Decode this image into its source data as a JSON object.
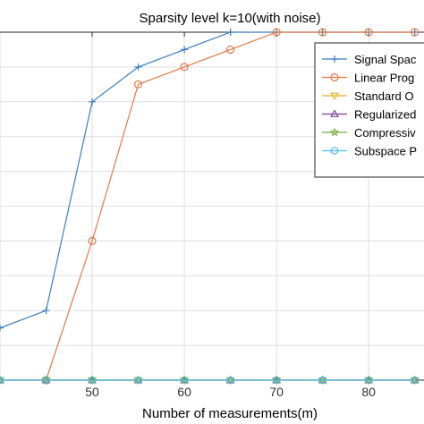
{
  "chart_data": {
    "type": "line",
    "title": "Sparsity level k=10(with noise)",
    "xlabel": "Number of measurements(m)",
    "ylabel": "",
    "xlim": [
      40,
      86
    ],
    "ylim": [
      0,
      1
    ],
    "grid": true,
    "x_ticks": [
      "50",
      "60",
      "70",
      "80"
    ],
    "legend_position": "top-right",
    "series": [
      {
        "name": "Signal Spac",
        "color": "#3b7ebf",
        "marker": "plus",
        "x": [
          40,
          45,
          50,
          55,
          60,
          65,
          70,
          75,
          80,
          85
        ],
        "y": [
          0.15,
          0.2,
          0.8,
          0.9,
          0.95,
          1.0,
          1.0,
          1.0,
          1.0,
          1.0
        ]
      },
      {
        "name": "Linear Prog",
        "color": "#e07a48",
        "marker": "circle",
        "x": [
          45,
          50,
          55,
          60,
          65,
          70,
          75,
          80,
          85
        ],
        "y": [
          0.0,
          0.4,
          0.85,
          0.9,
          0.95,
          1.0,
          1.0,
          1.0,
          1.0
        ]
      },
      {
        "name": "Standard O",
        "color": "#e3b41f",
        "marker": "triangle-down",
        "x": [
          40,
          45,
          50,
          55,
          60,
          65,
          70,
          75,
          80,
          85
        ],
        "y": [
          0,
          0,
          0,
          0,
          0,
          0,
          0,
          0,
          0,
          0
        ]
      },
      {
        "name": "Regularized",
        "color": "#7e3f97",
        "marker": "triangle-up",
        "x": [
          40,
          45,
          50,
          55,
          60,
          65,
          70,
          75,
          80,
          85
        ],
        "y": [
          0,
          0,
          0,
          0,
          0,
          0,
          0,
          0,
          0,
          0
        ]
      },
      {
        "name": "Compressiv",
        "color": "#77ac42",
        "marker": "star",
        "x": [
          40,
          45,
          50,
          55,
          60,
          65,
          70,
          75,
          80,
          85
        ],
        "y": [
          0,
          0,
          0,
          0,
          0,
          0,
          0,
          0,
          0,
          0
        ]
      },
      {
        "name": "Subspace P",
        "color": "#4dbeee",
        "marker": "hexagon",
        "x": [
          40,
          45,
          50,
          55,
          60,
          65,
          70,
          75,
          80,
          85
        ],
        "y": [
          0,
          0,
          0,
          0,
          0,
          0,
          0,
          0,
          0,
          0
        ]
      }
    ]
  }
}
